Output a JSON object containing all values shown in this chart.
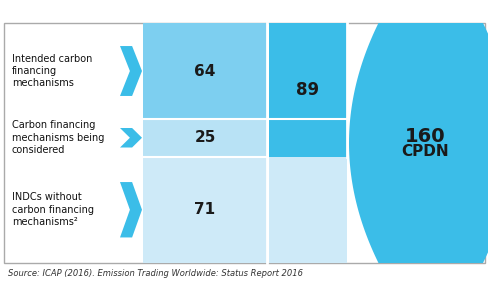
{
  "rows": [
    {
      "label": "Intended carbon\nfinancing\nmechanisms",
      "value": 64,
      "color": "#7dcff0"
    },
    {
      "label": "Carbon financing\nmechanisms being\nconsidered",
      "value": 25,
      "color": "#b8e2f5"
    },
    {
      "label": "INDCs without\ncarbon financing\nmechanisms²",
      "value": 71,
      "color": "#ceeaf8"
    }
  ],
  "group_value": 89,
  "group_color": "#3bbde8",
  "total_value": 160,
  "total_label": "CPDN",
  "total_color": "#3bbde8",
  "source_text": "Source: ICAP (2016). Emission Trading Worldwide: Status Report 2016",
  "chevron_color": "#3bbde8",
  "bg_color": "#ffffff",
  "border_color": "#aaaaaa"
}
